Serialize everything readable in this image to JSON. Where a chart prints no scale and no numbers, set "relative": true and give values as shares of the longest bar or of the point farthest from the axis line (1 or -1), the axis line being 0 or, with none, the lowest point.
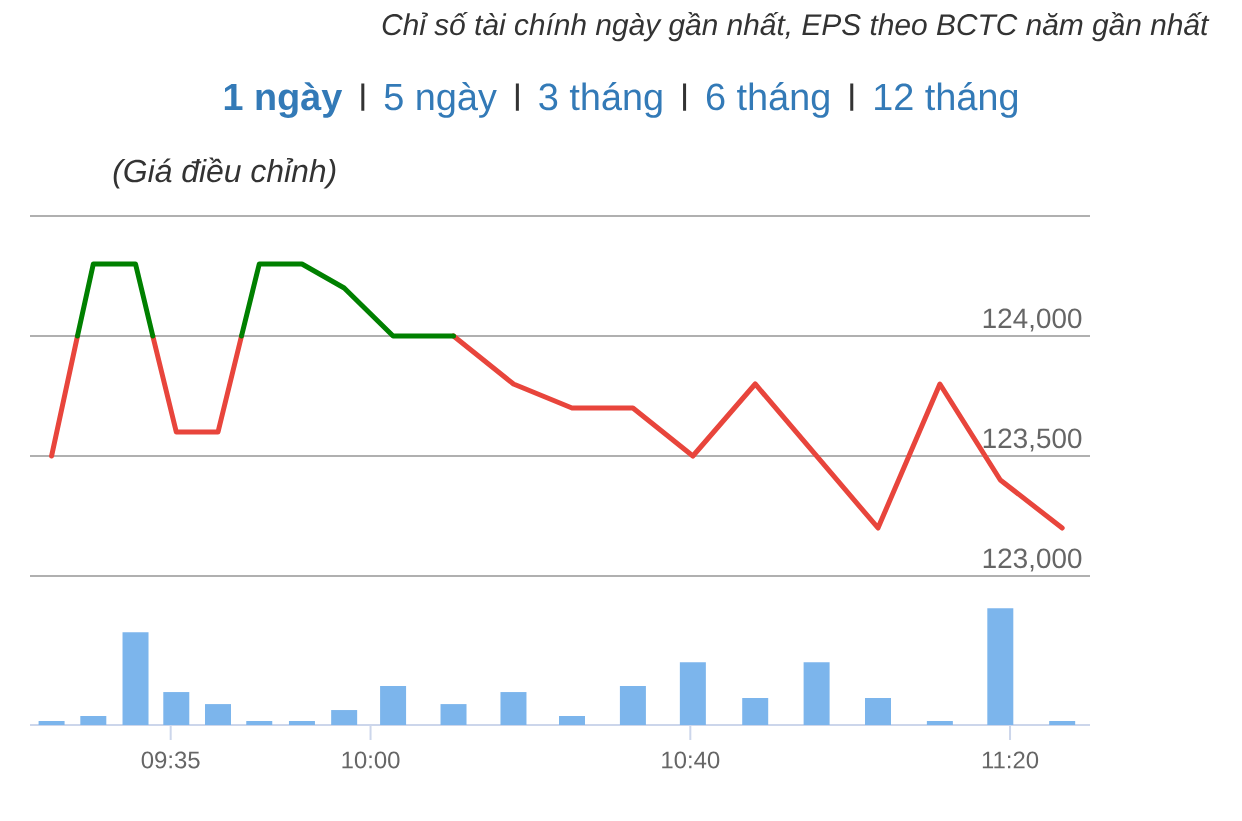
{
  "chart_data": [
    {
      "type": "line",
      "title": "(Giá điều chỉnh)",
      "subtitle": "Chỉ số tài chính ngày gần nhất, EPS theo BCTC năm gần nhất",
      "annotations": [
        "1 ngày",
        "5 ngày",
        "3 tháng",
        "6 tháng",
        "12 tháng"
      ],
      "series": [
        {
          "color": "#e8453c",
          "x": [
            9.335,
            9.389,
            9.47,
            9.546,
            9.595,
            9.682,
            9.731,
            9.85,
            10.173,
            10.298,
            10.42,
            10.547,
            10.672,
            10.802,
            10.93,
            11.058,
            11.187,
            11.313,
            11.442
          ],
          "values": [
            123500,
            124000,
            null,
            124000,
            123600,
            123600,
            124000,
            null,
            124000,
            123800,
            123700,
            123700,
            123500,
            123800,
            123500,
            123200,
            123800,
            123400,
            123200
          ]
        },
        {
          "color": "#008000",
          "x": [
            9.389,
            9.422,
            9.51,
            9.546,
            9.64,
            9.731,
            9.768,
            9.857,
            9.945,
            10.047,
            10.173
          ],
          "values": [
            124000,
            124300,
            124300,
            124000,
            null,
            124000,
            124300,
            124300,
            124200,
            124000,
            124000
          ]
        }
      ],
      "xlim": [
        9.29,
        11.5
      ],
      "ylim": [
        123000,
        124500
      ],
      "yticks": [
        {
          "value": 123000,
          "label": "123,000"
        },
        {
          "value": 123500,
          "label": "123,500"
        },
        {
          "value": 124000,
          "label": "124,000"
        },
        {
          "value": 124500,
          "label": null
        }
      ],
      "tick_labels": "y",
      "grid": "y",
      "marker": "none"
    },
    {
      "type": "bar",
      "relative": true,
      "color": "#7cb5ec",
      "x": [
        9.335,
        9.422,
        9.51,
        9.595,
        9.682,
        9.768,
        9.857,
        9.945,
        10.047,
        10.173,
        10.298,
        10.42,
        10.547,
        10.672,
        10.802,
        10.93,
        11.058,
        11.187,
        11.313,
        11.442
      ],
      "values": [
        0.034,
        0.077,
        0.795,
        0.282,
        0.179,
        0.034,
        0.034,
        0.128,
        0.333,
        0.179,
        0.282,
        0.077,
        0.333,
        0.538,
        0.231,
        0.538,
        0.231,
        0.034,
        1,
        0.034
      ],
      "xlim": [
        9.29,
        11.5
      ],
      "xticks": [
        {
          "value": 9.5833,
          "label": "09:35"
        },
        {
          "value": 10.0,
          "label": "10:00"
        },
        {
          "value": 10.6667,
          "label": "10:40"
        },
        {
          "value": 11.3333,
          "label": "11:20"
        }
      ],
      "tick_labels": "x"
    }
  ]
}
